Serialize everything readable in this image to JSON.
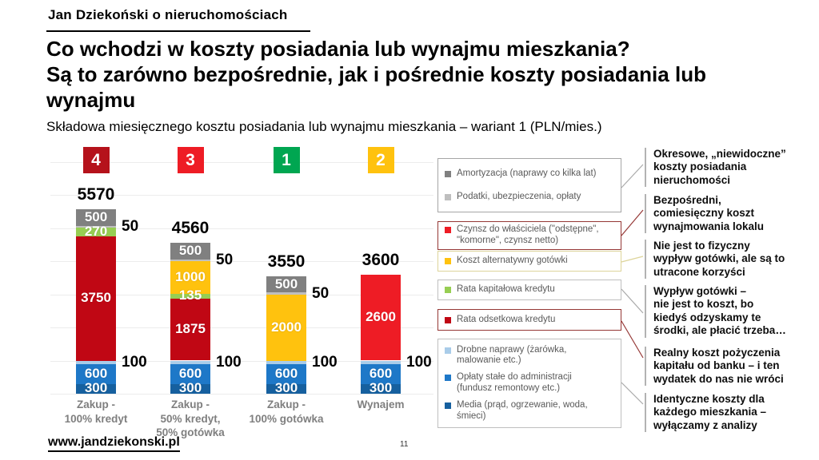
{
  "header": {
    "brand": "Jan Dziekoński o nieruchomościach"
  },
  "title": "Co wchodzi w koszty posiadania lub wynajmu mieszkania?\nSą to zarówno bezpośrednie, jak i pośrednie koszty posiadania lub\nwynajmu",
  "subtitle": "Składowa miesięcznego kosztu posiadania lub wynajmu mieszkania – wariant 1 (PLN/mies.)",
  "chart_data": {
    "type": "bar",
    "stacked": true,
    "title": "Składowa miesięcznego kosztu posiadania lub wynajmu mieszkania – wariant 1 (PLN/mies.)",
    "unit": "PLN/mies.",
    "ylim": [
      0,
      7000
    ],
    "gridline_step": 1000,
    "grid": true,
    "legend_position": "right",
    "colors": {
      "amortyzacja": "#808080",
      "podatki": "#bfbfbf",
      "czynsz": "#ee1c25",
      "koszt_alternatywny": "#ffc20e",
      "rata_kapitalowa": "#97ce53",
      "rata_odsetkowa": "#c00714",
      "drobne_naprawy": "#a9cce9",
      "oplaty_stale": "#1e78c8",
      "media": "#16609f"
    },
    "bars": [
      {
        "category": "Zakup -\n100% kredyt",
        "rank_badge": {
          "label": "4",
          "color": "#b5121b"
        },
        "total": 5570,
        "segments": [
          {
            "key": "media",
            "value": 300,
            "label": "inside"
          },
          {
            "key": "oplaty_stale",
            "value": 600,
            "label": "inside"
          },
          {
            "key": "drobne_naprawy",
            "value": 100,
            "label": "outside"
          },
          {
            "key": "rata_odsetkowa",
            "value": 3750,
            "label": "inside"
          },
          {
            "key": "rata_kapitalowa",
            "value": 270,
            "label": "inside"
          },
          {
            "key": "podatki",
            "value": 50,
            "label": "outside"
          },
          {
            "key": "amortyzacja",
            "value": 500,
            "label": "inside"
          }
        ]
      },
      {
        "category": "Zakup -\n50% kredyt,\n50% gotówka",
        "rank_badge": {
          "label": "3",
          "color": "#ee1c25"
        },
        "total": 4560,
        "segments": [
          {
            "key": "media",
            "value": 300,
            "label": "inside"
          },
          {
            "key": "oplaty_stale",
            "value": 600,
            "label": "inside"
          },
          {
            "key": "drobne_naprawy",
            "value": 100,
            "label": "outside"
          },
          {
            "key": "rata_odsetkowa",
            "value": 1875,
            "label": "inside"
          },
          {
            "key": "rata_kapitalowa",
            "value": 135,
            "label": "inside"
          },
          {
            "key": "koszt_alternatywny",
            "value": 1000,
            "label": "inside"
          },
          {
            "key": "podatki",
            "value": 50,
            "label": "outside"
          },
          {
            "key": "amortyzacja",
            "value": 500,
            "label": "inside"
          }
        ]
      },
      {
        "category": "Zakup -\n100% gotówka",
        "rank_badge": {
          "label": "1",
          "color": "#00a651"
        },
        "total": 3550,
        "segments": [
          {
            "key": "media",
            "value": 300,
            "label": "inside"
          },
          {
            "key": "oplaty_stale",
            "value": 600,
            "label": "inside"
          },
          {
            "key": "drobne_naprawy",
            "value": 100,
            "label": "outside"
          },
          {
            "key": "koszt_alternatywny",
            "value": 2000,
            "label": "inside"
          },
          {
            "key": "podatki",
            "value": 50,
            "label": "outside"
          },
          {
            "key": "amortyzacja",
            "value": 500,
            "label": "inside"
          }
        ]
      },
      {
        "category": "Wynajem",
        "rank_badge": {
          "label": "2",
          "color": "#ffc20e"
        },
        "total": 3600,
        "segments": [
          {
            "key": "media",
            "value": 300,
            "label": "inside"
          },
          {
            "key": "oplaty_stale",
            "value": 600,
            "label": "inside"
          },
          {
            "key": "drobne_naprawy",
            "value": 100,
            "label": "outside"
          },
          {
            "key": "czynsz",
            "value": 2600,
            "label": "inside"
          }
        ]
      }
    ]
  },
  "legend": {
    "groups": [
      {
        "border": "#a6a6a6",
        "items": [
          {
            "key": "amortyzacja",
            "label": "Amortyzacja (naprawy co kilka lat)"
          },
          {
            "key": "podatki",
            "label": "Podatki, ubezpieczenia, opłaty"
          }
        ]
      },
      {
        "border": "#953735",
        "items": [
          {
            "key": "czynsz",
            "label": "Czynsz do właściciela (\"odstępne\",\n\"komorne\", czynsz netto)"
          }
        ]
      },
      {
        "border": "#ddd49a",
        "items": [
          {
            "key": "koszt_alternatywny",
            "label": "Koszt alternatywny gotówki"
          }
        ]
      },
      {
        "border": "#bfbfbf",
        "items": [
          {
            "key": "rata_kapitalowa",
            "label": "Rata kapitałowa kredytu"
          }
        ]
      },
      {
        "border": "#953735",
        "items": [
          {
            "key": "rata_odsetkowa",
            "label": "Rata odsetkowa kredytu"
          }
        ]
      },
      {
        "border": "#bfbfbf",
        "items": [
          {
            "key": "drobne_naprawy",
            "label": "Drobne naprawy (żarówka,\nmalowanie etc.)"
          },
          {
            "key": "oplaty_stale",
            "label": "Opłaty stałe do administracji\n(fundusz remontowy etc.)"
          },
          {
            "key": "media",
            "label": "Media (prąd, ogrzewanie, woda,\nśmieci)"
          }
        ]
      }
    ]
  },
  "annotations": [
    {
      "text": "Okresowe, „niewidoczne”\nkoszty posiadania\nnieruchomości"
    },
    {
      "text": "Bezpośredni,\ncomiesięczny koszt\nwynajmowania lokalu"
    },
    {
      "text": "Nie jest to fizyczny\nwypływ gotówki, ale są to\nutracone korzyści"
    },
    {
      "text": "Wypływ gotówki –\nnie jest to koszt, bo\nkiedyś odzyskamy te\nśrodki, ale płacić trzeba…"
    },
    {
      "text": "Realny koszt pożyczenia\nkapitału od banku – i ten\nwydatek do nas nie wróci"
    },
    {
      "text": "Identyczne koszty dla\nkażdego mieszkania –\nwyłączamy z analizy"
    }
  ],
  "footer": {
    "website": "www.jandziekonski.pl",
    "page_number": "11"
  }
}
